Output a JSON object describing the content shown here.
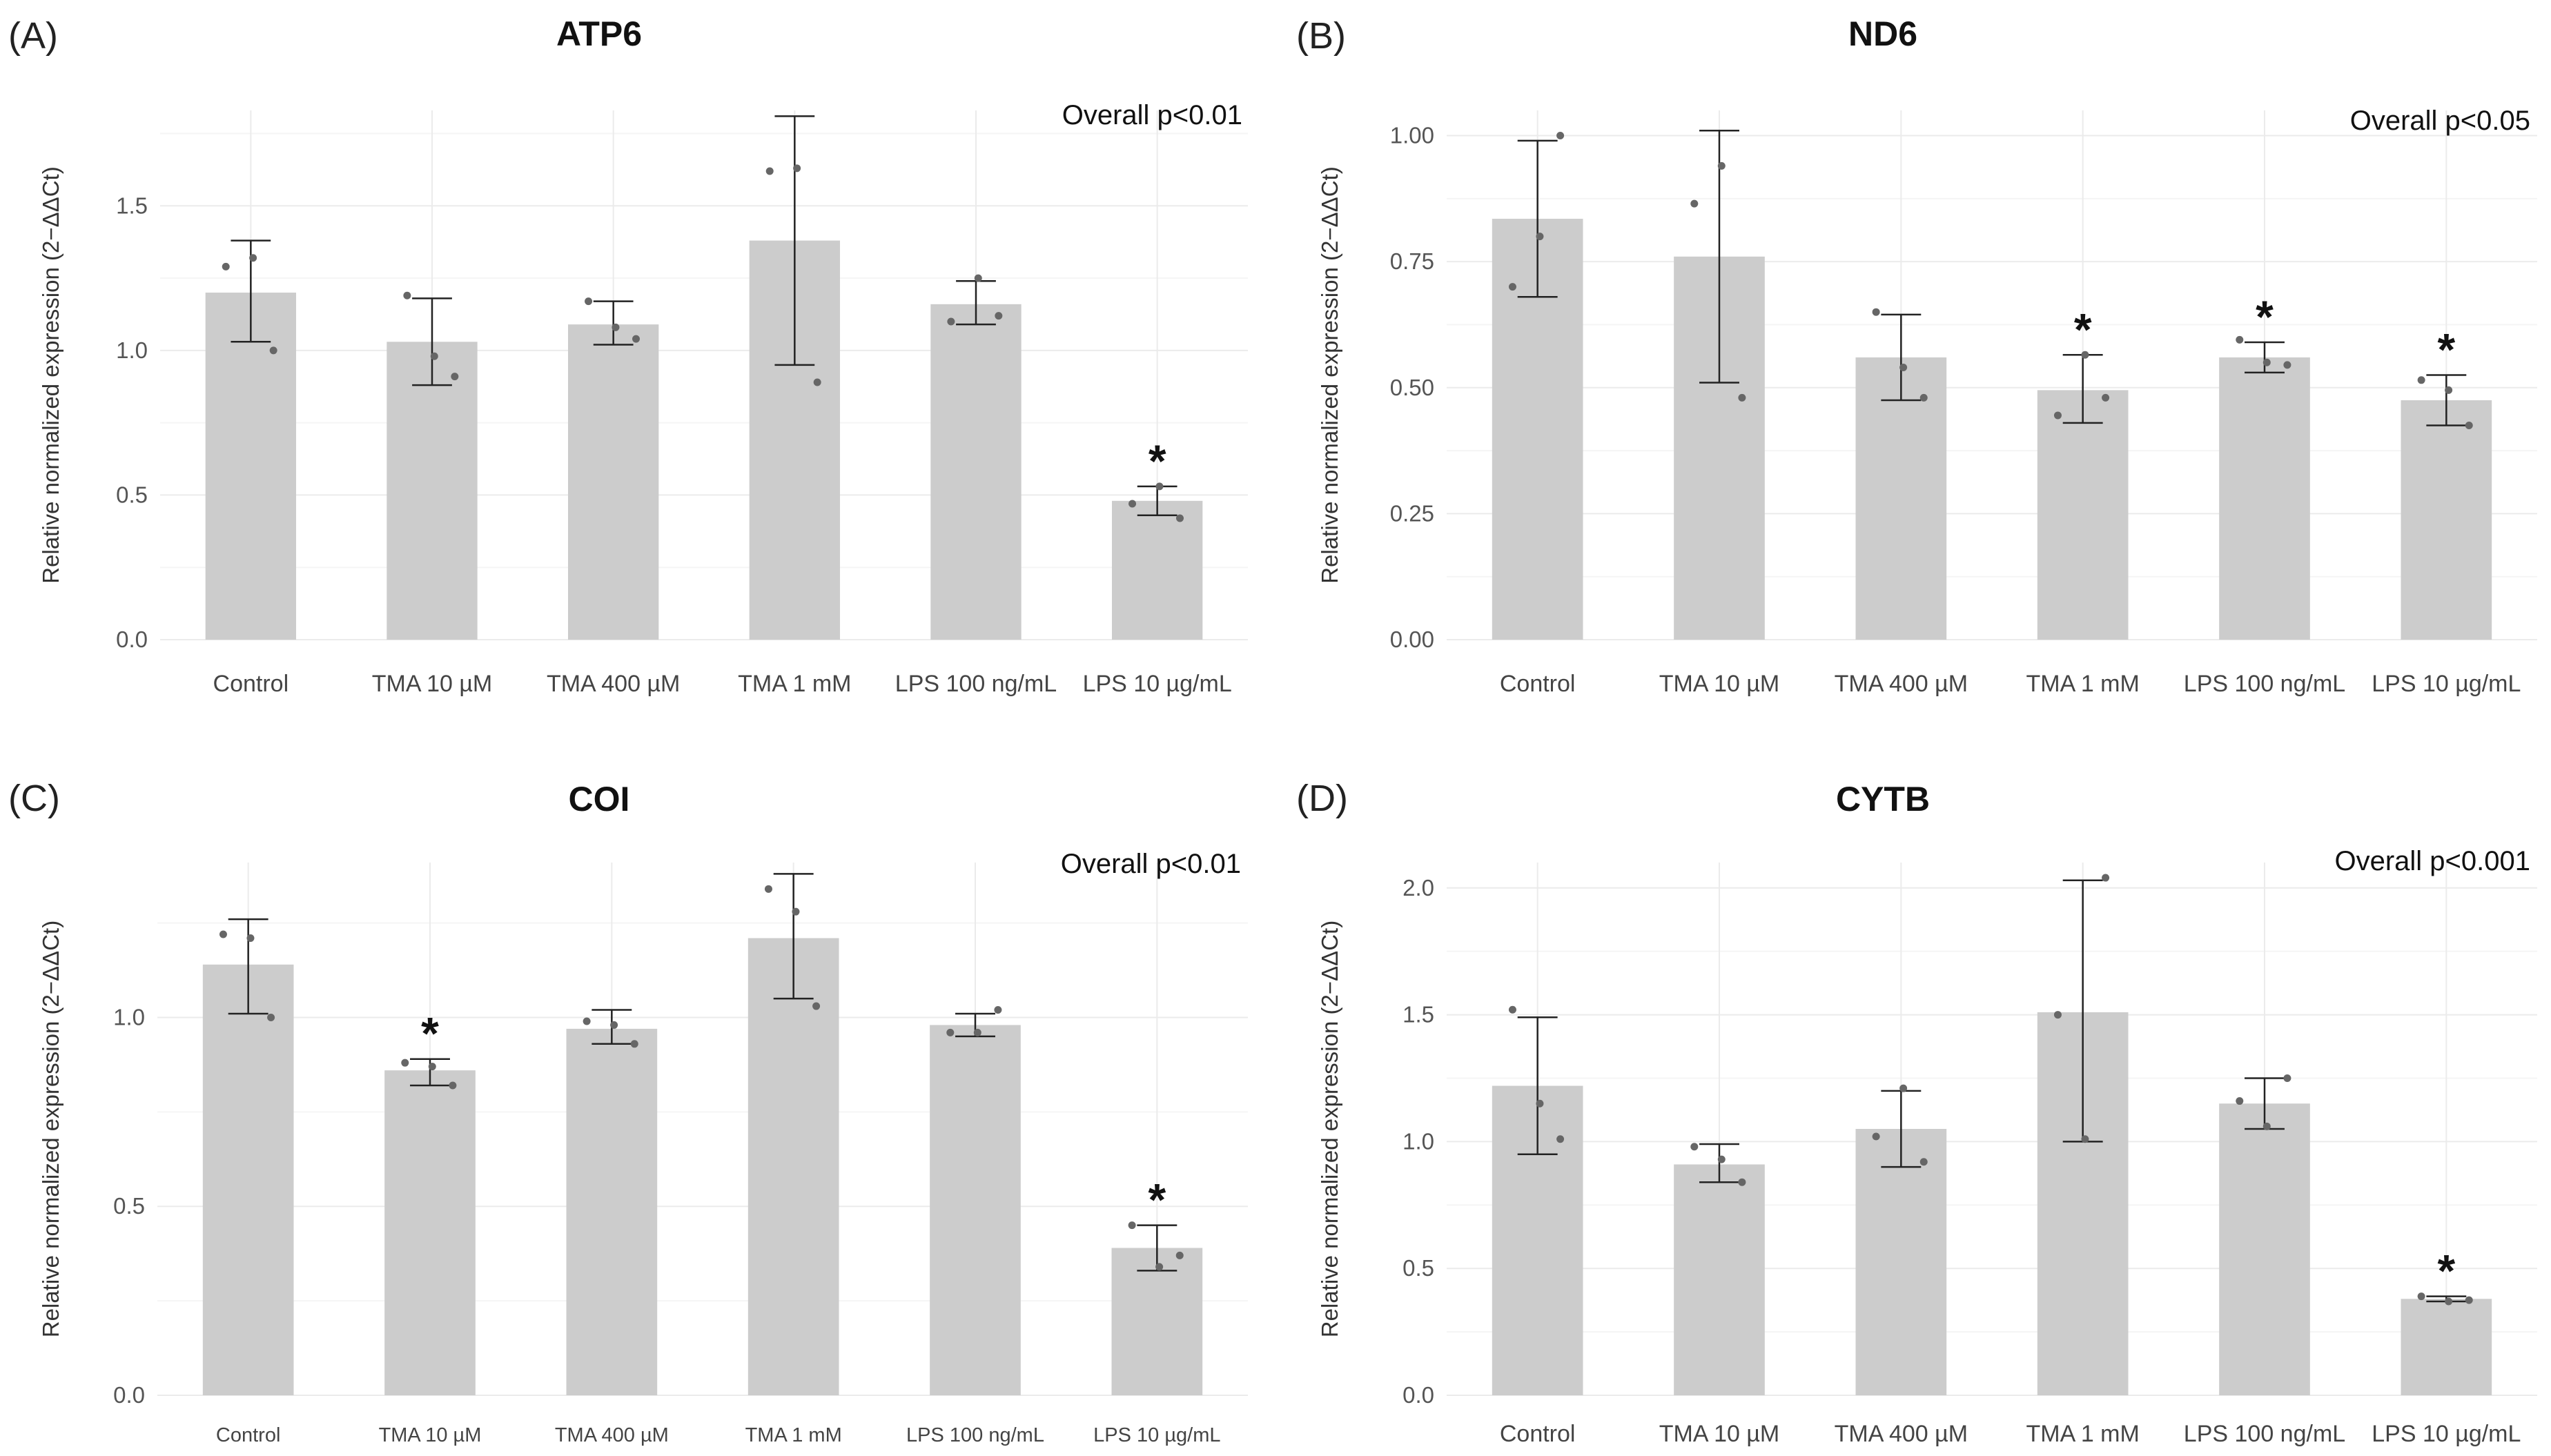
{
  "colors": {
    "bar": "#cccccc",
    "point": "#666666",
    "error_bar": "#222222",
    "grid_major": "#ebebeb",
    "grid_minor": "#f5f5f5",
    "text": "#111111"
  },
  "chart_data": [
    {
      "panel": "(A)",
      "type": "bar",
      "title": "ATP6",
      "annotation": "Overall p<0.01",
      "ylabel": "Relative normalized expression (2−ΔΔCt)",
      "xlabel": "",
      "ylim": [
        0,
        1.83
      ],
      "yticks": [
        0,
        0.5,
        1.0,
        1.5
      ],
      "ytick_labels": [
        "0.0",
        "0.5",
        "1.0",
        "1.5"
      ],
      "categories": [
        "Control",
        "TMA 10 µM",
        "TMA 400 µM",
        "TMA 1 mM",
        "LPS 100 ng/mL",
        "LPS 10 µg/mL"
      ],
      "values": [
        1.2,
        1.03,
        1.09,
        1.38,
        1.16,
        0.48
      ],
      "error_low": [
        1.03,
        0.88,
        1.02,
        0.95,
        1.09,
        0.43
      ],
      "error_high": [
        1.38,
        1.18,
        1.17,
        1.81,
        1.24,
        0.53
      ],
      "points": [
        [
          1.29,
          1.32,
          1.0
        ],
        [
          1.19,
          0.98,
          0.91
        ],
        [
          1.17,
          1.08,
          1.04
        ],
        [
          1.62,
          1.63,
          0.89
        ],
        [
          1.1,
          1.25,
          1.12
        ],
        [
          0.47,
          0.53,
          0.42
        ]
      ],
      "significance": [
        "",
        "",
        "",
        "",
        "",
        "*"
      ]
    },
    {
      "panel": "(B)",
      "type": "bar",
      "title": "ND6",
      "annotation": "Overall p<0.05",
      "ylabel": "Relative normalized expression (2−ΔΔCt)",
      "xlabel": "",
      "ylim": [
        0,
        1.05
      ],
      "yticks": [
        0,
        0.25,
        0.5,
        0.75,
        1.0
      ],
      "ytick_labels": [
        "0.00",
        "0.25",
        "0.50",
        "0.75",
        "1.00"
      ],
      "categories": [
        "Control",
        "TMA 10 µM",
        "TMA 400 µM",
        "TMA 1 mM",
        "LPS 100 ng/mL",
        "LPS 10 µg/mL"
      ],
      "values": [
        0.835,
        0.76,
        0.56,
        0.495,
        0.56,
        0.475
      ],
      "error_low": [
        0.68,
        0.51,
        0.475,
        0.43,
        0.53,
        0.425
      ],
      "error_high": [
        0.99,
        1.01,
        0.645,
        0.565,
        0.59,
        0.525
      ],
      "points": [
        [
          0.7,
          0.8,
          1.0
        ],
        [
          0.865,
          0.94,
          0.48
        ],
        [
          0.65,
          0.54,
          0.48
        ],
        [
          0.445,
          0.565,
          0.48
        ],
        [
          0.595,
          0.55,
          0.545
        ],
        [
          0.515,
          0.495,
          0.425
        ]
      ],
      "significance": [
        "",
        "",
        "",
        "*",
        "*",
        "*"
      ]
    },
    {
      "panel": "(C)",
      "type": "bar",
      "title": "COI",
      "annotation": "Overall p<0.01",
      "ylabel": "Relative normalized expression (2−ΔΔCt)",
      "xlabel": "",
      "ylim": [
        0,
        1.41
      ],
      "yticks": [
        0,
        0.5,
        1.0
      ],
      "ytick_labels": [
        "0.0",
        "0.5",
        "1.0"
      ],
      "categories": [
        "Control",
        "TMA 10 µM",
        "TMA 400 µM",
        "TMA 1 mM",
        "LPS 100 ng/mL",
        "LPS 10 µg/mL"
      ],
      "values": [
        1.14,
        0.86,
        0.97,
        1.21,
        0.98,
        0.39
      ],
      "error_low": [
        1.01,
        0.82,
        0.93,
        1.05,
        0.95,
        0.33
      ],
      "error_high": [
        1.26,
        0.89,
        1.02,
        1.38,
        1.01,
        0.45
      ],
      "points": [
        [
          1.22,
          1.21,
          1.0
        ],
        [
          0.88,
          0.87,
          0.82
        ],
        [
          0.99,
          0.98,
          0.93
        ],
        [
          1.34,
          1.28,
          1.03
        ],
        [
          0.96,
          0.96,
          1.02
        ],
        [
          0.45,
          0.34,
          0.37
        ]
      ],
      "significance": [
        "",
        "*",
        "",
        "",
        "",
        "*"
      ]
    },
    {
      "panel": "(D)",
      "type": "bar",
      "title": "CYTB",
      "annotation": "Overall p<0.001",
      "ylabel": "Relative normalized expression (2−ΔΔCt)",
      "xlabel": "",
      "ylim": [
        0,
        2.1
      ],
      "yticks": [
        0,
        0.5,
        1.0,
        1.5,
        2.0
      ],
      "ytick_labels": [
        "0.0",
        "0.5",
        "1.0",
        "1.5",
        "2.0"
      ],
      "categories": [
        "Control",
        "TMA 10 µM",
        "TMA 400 µM",
        "TMA 1 mM",
        "LPS 100 ng/mL",
        "LPS 10 µg/mL"
      ],
      "values": [
        1.22,
        0.91,
        1.05,
        1.51,
        1.15,
        0.38
      ],
      "error_low": [
        0.95,
        0.84,
        0.9,
        1.0,
        1.05,
        0.37
      ],
      "error_high": [
        1.49,
        0.99,
        1.2,
        2.03,
        1.25,
        0.39
      ],
      "points": [
        [
          1.52,
          1.15,
          1.01
        ],
        [
          0.98,
          0.93,
          0.84
        ],
        [
          1.02,
          1.21,
          0.92
        ],
        [
          1.5,
          1.01,
          2.04
        ],
        [
          1.16,
          1.06,
          1.25
        ],
        [
          0.39,
          0.37,
          0.375
        ]
      ],
      "significance": [
        "",
        "",
        "",
        "",
        "",
        "*"
      ]
    }
  ]
}
